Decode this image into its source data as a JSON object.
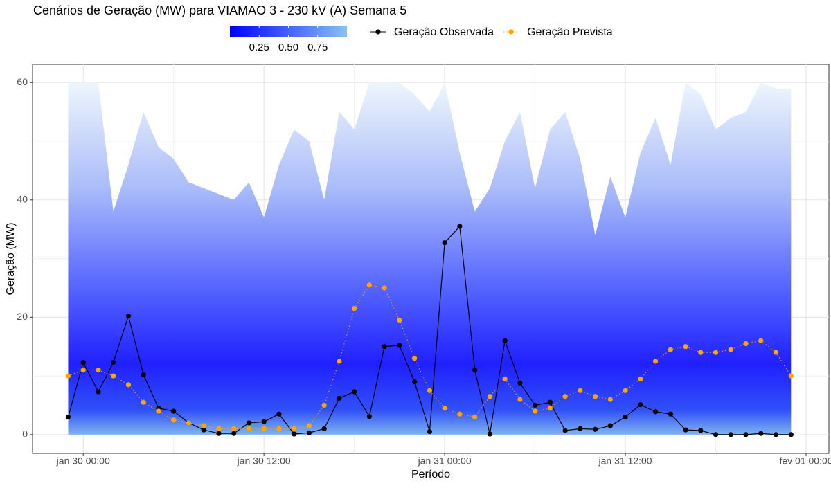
{
  "chart_data": {
    "type": "line",
    "title": "Cenários de Geração (MW) para VIAMAO 3 - 230 kV (A) Semana 5",
    "x_label": "Período",
    "y_label": "Geração (MW)",
    "x": [
      "jan 29 23:00",
      "jan 30 00:00",
      "jan 30 01:00",
      "jan 30 02:00",
      "jan 30 03:00",
      "jan 30 04:00",
      "jan 30 05:00",
      "jan 30 06:00",
      "jan 30 07:00",
      "jan 30 08:00",
      "jan 30 09:00",
      "jan 30 10:00",
      "jan 30 11:00",
      "jan 30 12:00",
      "jan 30 13:00",
      "jan 30 14:00",
      "jan 30 15:00",
      "jan 30 16:00",
      "jan 30 17:00",
      "jan 30 18:00",
      "jan 30 19:00",
      "jan 30 20:00",
      "jan 30 21:00",
      "jan 30 22:00",
      "jan 30 23:00",
      "jan 31 00:00",
      "jan 31 01:00",
      "jan 31 02:00",
      "jan 31 03:00",
      "jan 31 04:00",
      "jan 31 05:00",
      "jan 31 06:00",
      "jan 31 07:00",
      "jan 31 08:00",
      "jan 31 09:00",
      "jan 31 10:00",
      "jan 31 11:00",
      "jan 31 12:00",
      "jan 31 13:00",
      "jan 31 14:00",
      "jan 31 15:00",
      "jan 31 16:00",
      "jan 31 17:00",
      "jan 31 18:00",
      "jan 31 19:00",
      "jan 31 20:00",
      "jan 31 21:00",
      "jan 31 22:00",
      "jan 31 23:00"
    ],
    "series": [
      {
        "name": "Geração Observada",
        "color": "#000000",
        "style": "solid",
        "values": [
          3,
          12.3,
          7.3,
          12.3,
          20.2,
          10.2,
          4.5,
          4,
          2,
          0.8,
          0.2,
          0.2,
          2,
          2.2,
          3.5,
          0.1,
          0.3,
          1,
          6.2,
          7.3,
          3.1,
          15,
          15.2,
          9,
          0.5,
          32.7,
          35.5,
          11,
          0.1,
          16,
          8.8,
          5,
          5.5,
          0.7,
          1,
          0.9,
          1.5,
          3,
          5.1,
          3.9,
          3.5,
          0.8,
          0.7,
          0,
          0,
          0,
          0.2,
          0,
          0
        ]
      },
      {
        "name": "Geração Prevista",
        "color": "#ffa500",
        "style": "dotted",
        "values": [
          10,
          11,
          11,
          10,
          8.5,
          5.5,
          4,
          2.5,
          2,
          1.5,
          1,
          1,
          1,
          1,
          1,
          1,
          1.5,
          5,
          12.5,
          21.5,
          25.5,
          25,
          19.5,
          13,
          7.5,
          4.5,
          3.5,
          3,
          6.5,
          9.5,
          6,
          4,
          4.5,
          6.5,
          7.5,
          6.5,
          6,
          7.5,
          9.5,
          12.5,
          14.5,
          15,
          14,
          14,
          14.5,
          15.5,
          16,
          14,
          10
        ]
      }
    ],
    "scenario_envelope": [
      60,
      60,
      60,
      38,
      46,
      55,
      49,
      47,
      43,
      42,
      41,
      40,
      43,
      37,
      46,
      52,
      50,
      40,
      55,
      52,
      60,
      60,
      60,
      58,
      55,
      60,
      48,
      38,
      42,
      50,
      55,
      42,
      52,
      55,
      47,
      34,
      44,
      37,
      48,
      54,
      46,
      60,
      58,
      52,
      54,
      55,
      60,
      59,
      59
    ],
    "colorbar": {
      "colors": [
        "#0000ff",
        "#87c3f3"
      ],
      "lim": [
        0,
        1
      ],
      "ticks": [
        0.25,
        {
          "value": 0.5,
          "label": "0.50"
        },
        0.75
      ]
    },
    "xlim": [
      "jan 29 20:38",
      "fev 01 01:31"
    ],
    "xticks": [
      "jan 30 00:00",
      "jan 30 12:00",
      "jan 31 00:00",
      "jan 31 12:00",
      "fev 01 00:00"
    ],
    "ylim": [
      -3.2,
      63.1
    ],
    "yticks": [
      0,
      20,
      40,
      60
    ],
    "grid": true
  }
}
